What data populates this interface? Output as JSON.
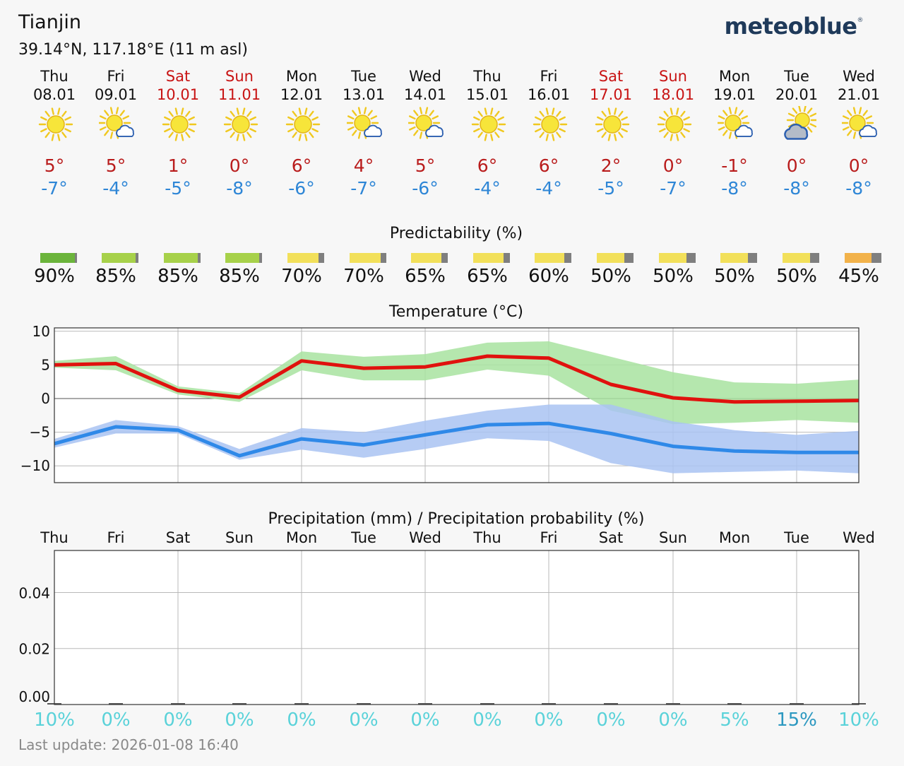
{
  "location": {
    "city": "Tianjin",
    "coords": "39.14°N, 117.18°E (11 m asl)"
  },
  "brand": {
    "name": "meteoblue",
    "mark": "®"
  },
  "days": [
    {
      "name": "Thu",
      "date": "08.01",
      "weekend": false,
      "icon": "sun-icon",
      "tmax": "5°",
      "tmin": "-7°",
      "predictability": "90%",
      "pred_value": 90,
      "pred_color": "#6bb43b",
      "precip_day": "Thu",
      "precip_prob": "10%"
    },
    {
      "name": "Fri",
      "date": "09.01",
      "weekend": false,
      "icon": "sun-cloud-icon",
      "tmax": "5°",
      "tmin": "-4°",
      "predictability": "85%",
      "pred_value": 85,
      "pred_color": "#a7d14a",
      "precip_day": "Fri",
      "precip_prob": "0%"
    },
    {
      "name": "Sat",
      "date": "10.01",
      "weekend": true,
      "icon": "sun-icon",
      "tmax": "1°",
      "tmin": "-5°",
      "predictability": "85%",
      "pred_value": 85,
      "pred_color": "#a7d14a",
      "precip_day": "Sat",
      "precip_prob": "0%"
    },
    {
      "name": "Sun",
      "date": "11.01",
      "weekend": true,
      "icon": "sun-icon",
      "tmax": "0°",
      "tmin": "-8°",
      "predictability": "85%",
      "pred_value": 85,
      "pred_color": "#a7d14a",
      "precip_day": "Sun",
      "precip_prob": "0%"
    },
    {
      "name": "Mon",
      "date": "12.01",
      "weekend": false,
      "icon": "sun-icon",
      "tmax": "6°",
      "tmin": "-6°",
      "predictability": "70%",
      "pred_value": 70,
      "pred_color": "#f2e05a",
      "precip_day": "Mon",
      "precip_prob": "0%"
    },
    {
      "name": "Tue",
      "date": "13.01",
      "weekend": false,
      "icon": "sun-cloud-icon",
      "tmax": "4°",
      "tmin": "-7°",
      "predictability": "70%",
      "pred_value": 70,
      "pred_color": "#f2e05a",
      "precip_day": "Tue",
      "precip_prob": "0%"
    },
    {
      "name": "Wed",
      "date": "14.01",
      "weekend": false,
      "icon": "sun-cloud-icon",
      "tmax": "5°",
      "tmin": "-6°",
      "predictability": "65%",
      "pred_value": 65,
      "pred_color": "#f2e05a",
      "precip_day": "Wed",
      "precip_prob": "0%"
    },
    {
      "name": "Thu",
      "date": "15.01",
      "weekend": false,
      "icon": "sun-icon",
      "tmax": "6°",
      "tmin": "-4°",
      "predictability": "65%",
      "pred_value": 65,
      "pred_color": "#f2e05a",
      "precip_day": "Thu",
      "precip_prob": "0%"
    },
    {
      "name": "Fri",
      "date": "16.01",
      "weekend": false,
      "icon": "sun-icon",
      "tmax": "6°",
      "tmin": "-4°",
      "predictability": "60%",
      "pred_value": 60,
      "pred_color": "#f2e05a",
      "precip_day": "Fri",
      "precip_prob": "0%"
    },
    {
      "name": "Sat",
      "date": "17.01",
      "weekend": true,
      "icon": "sun-icon",
      "tmax": "2°",
      "tmin": "-5°",
      "predictability": "50%",
      "pred_value": 50,
      "pred_color": "#f2e05a",
      "precip_day": "Sat",
      "precip_prob": "0%"
    },
    {
      "name": "Sun",
      "date": "18.01",
      "weekend": true,
      "icon": "sun-icon",
      "tmax": "0°",
      "tmin": "-7°",
      "predictability": "50%",
      "pred_value": 50,
      "pred_color": "#f2e05a",
      "precip_day": "Sun",
      "precip_prob": "0%"
    },
    {
      "name": "Mon",
      "date": "19.01",
      "weekend": false,
      "icon": "sun-cloud-icon",
      "tmax": "-1°",
      "tmin": "-8°",
      "predictability": "50%",
      "pred_value": 50,
      "pred_color": "#f2e05a",
      "precip_day": "Mon",
      "precip_prob": "5%"
    },
    {
      "name": "Tue",
      "date": "20.01",
      "weekend": false,
      "icon": "cloud-sun-icon",
      "tmax": "0°",
      "tmin": "-8°",
      "predictability": "50%",
      "pred_value": 50,
      "pred_color": "#f2e05a",
      "precip_day": "Tue",
      "precip_prob": "15%"
    },
    {
      "name": "Wed",
      "date": "21.01",
      "weekend": false,
      "icon": "sun-cloud-icon",
      "tmax": "0°",
      "tmin": "-8°",
      "predictability": "45%",
      "pred_value": 45,
      "pred_color": "#f2b24a",
      "precip_day": "Wed",
      "precip_prob": "10%"
    }
  ],
  "sections": {
    "predictability_title": "Predictability (%)",
    "temperature_title": "Temperature (°C)",
    "precip_title": "Precipitation (mm) / Precipitation probability (%)"
  },
  "chart_data": [
    {
      "type": "line",
      "title": "Temperature (°C)",
      "ylim": [
        -12.5,
        10.5
      ],
      "yticks": [
        10,
        5,
        0,
        -5,
        -10
      ],
      "ytick_labels": [
        "10",
        "5",
        "0",
        "−5",
        "−10"
      ],
      "x": [
        0,
        1,
        2,
        3,
        4,
        5,
        6,
        7,
        8,
        9,
        10,
        11,
        12,
        13
      ],
      "series": [
        {
          "name": "max",
          "color": "#e0120e",
          "values": [
            5.0,
            5.2,
            1.2,
            0.2,
            5.6,
            4.5,
            4.7,
            6.3,
            6.0,
            2.1,
            0.1,
            -0.5,
            -0.4,
            -0.3
          ],
          "band_upper": [
            5.6,
            6.3,
            1.8,
            0.8,
            7.0,
            6.2,
            6.6,
            8.3,
            8.5,
            6.2,
            3.9,
            2.4,
            2.2,
            2.8
          ],
          "band_lower": [
            4.6,
            4.2,
            0.6,
            -0.5,
            4.2,
            2.7,
            2.7,
            4.3,
            3.4,
            -1.8,
            -3.8,
            -3.6,
            -3.2,
            -3.6
          ],
          "band_color": "#a8e3a0"
        },
        {
          "name": "min",
          "color": "#2f89e8",
          "values": [
            -6.7,
            -4.2,
            -4.7,
            -8.5,
            -6.0,
            -6.9,
            -5.4,
            -3.9,
            -3.7,
            -5.2,
            -7.1,
            -7.8,
            -8.0,
            -8.0
          ],
          "band_upper": [
            -6.0,
            -3.2,
            -4.1,
            -7.5,
            -4.4,
            -5.0,
            -3.3,
            -1.8,
            -0.9,
            -0.9,
            -3.4,
            -4.7,
            -5.4,
            -4.8
          ],
          "band_lower": [
            -7.3,
            -5.2,
            -5.2,
            -9.1,
            -7.6,
            -8.8,
            -7.5,
            -5.9,
            -6.3,
            -9.6,
            -11.1,
            -10.9,
            -10.7,
            -11.1
          ],
          "band_color": "#a9c3f2"
        }
      ]
    },
    {
      "type": "bar",
      "title": "Precipitation (mm) / Precipitation probability (%)",
      "ylim": [
        0,
        0.055
      ],
      "yticks": [
        0.0,
        0.02,
        0.04
      ],
      "ytick_labels": [
        "0.00",
        "0.02",
        "0.04"
      ],
      "categories": [
        "Thu",
        "Fri",
        "Sat",
        "Sun",
        "Mon",
        "Tue",
        "Wed",
        "Thu",
        "Fri",
        "Sat",
        "Sun",
        "Mon",
        "Tue",
        "Wed"
      ],
      "values": [
        0,
        0,
        0,
        0,
        0,
        0,
        0,
        0,
        0,
        0,
        0,
        0,
        0,
        0
      ],
      "probability": [
        10,
        0,
        0,
        0,
        0,
        0,
        0,
        0,
        0,
        0,
        0,
        5,
        15,
        10
      ]
    }
  ],
  "footer": {
    "last_update": "Last update: 2026-01-08 16:40"
  }
}
